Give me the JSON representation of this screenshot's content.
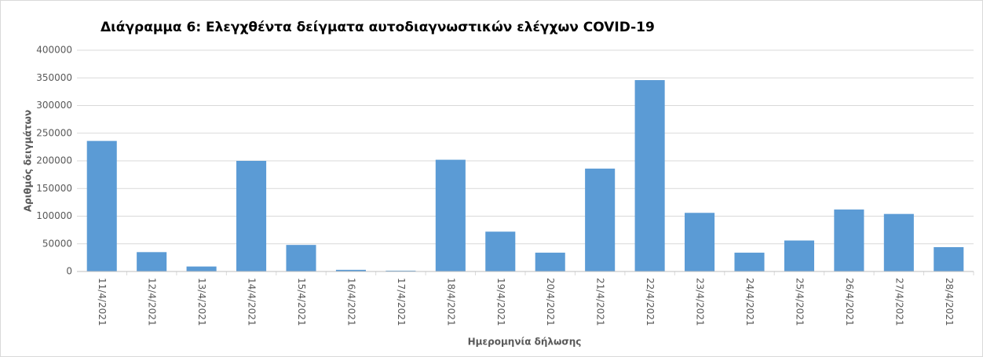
{
  "chart_data": {
    "type": "bar",
    "title": "Διάγραμμα 6: Ελεγχθέντα δείγματα αυτοδιαγνωστικών ελέγχων COVID-19",
    "x_label": "Ημερομηνία δήλωσης",
    "y_label": "Αριθμός δειγμάτων",
    "categories": [
      "11/4/2021",
      "12/4/2021",
      "13/4/2021",
      "14/4/2021",
      "15/4/2021",
      "16/4/2021",
      "17/4/2021",
      "18/4/2021",
      "19/4/2021",
      "20/4/2021",
      "21/4/2021",
      "22/4/2021",
      "23/4/2021",
      "24/4/2021",
      "25/4/2021",
      "26/4/2021",
      "27/4/2021",
      "28/4/2021"
    ],
    "values": [
      236000,
      35000,
      9000,
      200000,
      48000,
      3000,
      1500,
      202000,
      72000,
      34000,
      186000,
      346000,
      106000,
      34000,
      56000,
      112000,
      104000,
      44000
    ],
    "color": "#5b9bd5",
    "ylim": [
      0,
      400000
    ],
    "yticks": [
      0,
      50000,
      100000,
      150000,
      200000,
      250000,
      300000,
      350000,
      400000
    ],
    "grid": true
  }
}
